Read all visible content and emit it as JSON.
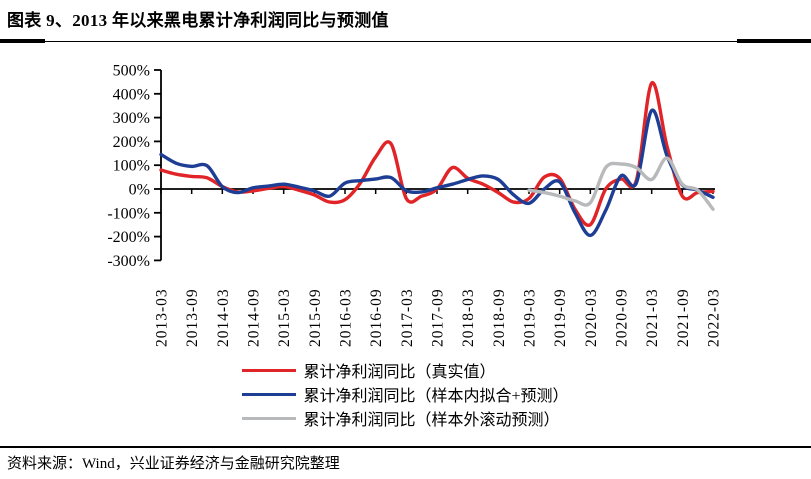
{
  "header": {
    "title": "图表 9、2013 年以来黑电累计净利润同比与预测值"
  },
  "footer": {
    "source": "资料来源：Wind，兴业证券经济与金融研究院整理"
  },
  "colors": {
    "axis": "#000000",
    "actual": "#e02427",
    "fit": "#1e3e95",
    "rolling": "#b8b9bb"
  },
  "chart_data": {
    "type": "line",
    "title": "",
    "xlabel": "",
    "ylabel": "",
    "grid": false,
    "legend_position": "bottom",
    "ylim": [
      -300,
      500
    ],
    "y_ticks": [
      500,
      400,
      300,
      200,
      100,
      0,
      -100,
      -200,
      -300
    ],
    "y_tick_labels": [
      "500%",
      "400%",
      "300%",
      "200%",
      "100%",
      "0%",
      "-100%",
      "-200%",
      "-300%"
    ],
    "x": [
      "2013-03",
      "2013-06",
      "2013-09",
      "2013-12",
      "2014-03",
      "2014-06",
      "2014-09",
      "2014-12",
      "2015-03",
      "2015-06",
      "2015-09",
      "2015-12",
      "2016-03",
      "2016-06",
      "2016-09",
      "2016-12",
      "2017-03",
      "2017-06",
      "2017-09",
      "2017-12",
      "2018-03",
      "2018-06",
      "2018-09",
      "2018-12",
      "2019-03",
      "2019-06",
      "2019-09",
      "2019-12",
      "2020-03",
      "2020-06",
      "2020-09",
      "2020-12",
      "2021-03",
      "2021-06",
      "2021-09",
      "2021-12",
      "2022-03"
    ],
    "x_tick_labels": [
      "2013-03",
      "2013-09",
      "2014-03",
      "2014-09",
      "2015-03",
      "2015-09",
      "2016-03",
      "2016-09",
      "2017-03",
      "2017-09",
      "2018-03",
      "2018-09",
      "2019-03",
      "2019-09",
      "2020-03",
      "2020-09",
      "2021-03",
      "2021-09",
      "2022-03"
    ],
    "unit": "%",
    "series": [
      {
        "name": "累计净利润同比（真实值）",
        "color": "#e02427",
        "values": [
          80,
          62,
          53,
          47,
          10,
          -12,
          -8,
          2,
          10,
          -5,
          -25,
          -55,
          -45,
          25,
          135,
          190,
          -40,
          -30,
          0,
          90,
          45,
          20,
          -15,
          -55,
          -40,
          50,
          45,
          -85,
          -150,
          0,
          42,
          35,
          445,
          180,
          -30,
          -15,
          -10
        ]
      },
      {
        "name": "累计净利润同比（样本内拟合+预测）",
        "color": "#1e3e95",
        "values": [
          145,
          108,
          95,
          98,
          10,
          -15,
          5,
          12,
          20,
          8,
          -8,
          -30,
          25,
          35,
          42,
          48,
          -7,
          -12,
          5,
          20,
          40,
          55,
          40,
          -25,
          -60,
          0,
          30,
          -100,
          -195,
          -90,
          55,
          25,
          330,
          140,
          18,
          -5,
          -35
        ]
      },
      {
        "name": "累计净利润同比（样本外滚动预测）",
        "color": "#b8b9bb",
        "values": [
          null,
          null,
          null,
          null,
          null,
          null,
          null,
          null,
          null,
          null,
          null,
          null,
          null,
          null,
          null,
          null,
          null,
          null,
          null,
          null,
          null,
          null,
          null,
          null,
          -5,
          -15,
          -30,
          -50,
          -58,
          90,
          105,
          90,
          40,
          130,
          20,
          -5,
          -85
        ]
      }
    ]
  }
}
